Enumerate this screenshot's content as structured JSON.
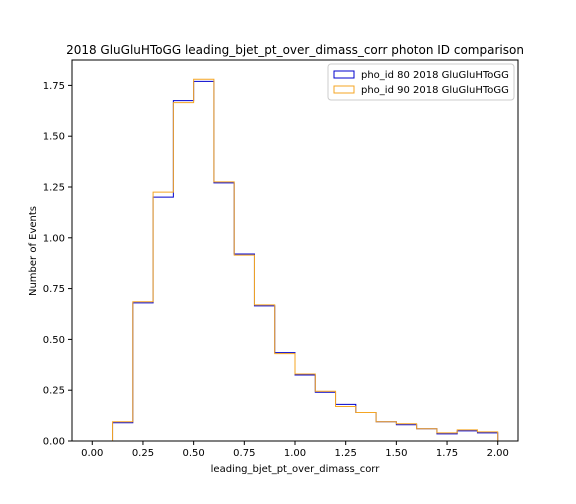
{
  "chart_data": {
    "type": "step-histogram",
    "title": "2018 GluGluHToGG leading_bjet_pt_over_dimass_corr photon ID comparison",
    "xlabel": "leading_bjet_pt_over_dimass_corr",
    "ylabel": "Number of Events",
    "xlim": [
      -0.1,
      2.1
    ],
    "ylim": [
      0,
      1.875
    ],
    "xticks": [
      "0.00",
      "0.25",
      "0.50",
      "0.75",
      "1.00",
      "1.25",
      "1.50",
      "1.75",
      "2.00"
    ],
    "xtick_values": [
      0.0,
      0.25,
      0.5,
      0.75,
      1.0,
      1.25,
      1.5,
      1.75,
      2.0
    ],
    "yticks": [
      "0.00",
      "0.25",
      "0.50",
      "0.75",
      "1.00",
      "1.25",
      "1.50",
      "1.75"
    ],
    "ytick_values": [
      0.0,
      0.25,
      0.5,
      0.75,
      1.0,
      1.25,
      1.5,
      1.75
    ],
    "bin_edges": [
      0.0,
      0.1,
      0.2,
      0.3,
      0.4,
      0.5,
      0.6,
      0.7,
      0.8,
      0.9,
      1.0,
      1.1,
      1.2,
      1.3,
      1.4,
      1.5,
      1.6,
      1.7,
      1.8,
      1.9,
      2.0
    ],
    "legend_position": "top-right",
    "series": [
      {
        "name": "pho_id 80 2018 GluGluHToGG",
        "color": "#0000cc",
        "values": [
          0.0,
          0.09,
          0.68,
          1.2,
          1.675,
          1.77,
          1.27,
          0.92,
          0.665,
          0.435,
          0.325,
          0.24,
          0.18,
          0.14,
          0.095,
          0.08,
          0.06,
          0.035,
          0.05,
          0.04
        ]
      },
      {
        "name": "pho_id 90 2018 GluGluHToGG",
        "color": "#f5a623",
        "values": [
          0.0,
          0.095,
          0.685,
          1.225,
          1.665,
          1.78,
          1.275,
          0.915,
          0.67,
          0.43,
          0.33,
          0.245,
          0.17,
          0.14,
          0.095,
          0.085,
          0.06,
          0.04,
          0.055,
          0.045
        ]
      }
    ]
  }
}
